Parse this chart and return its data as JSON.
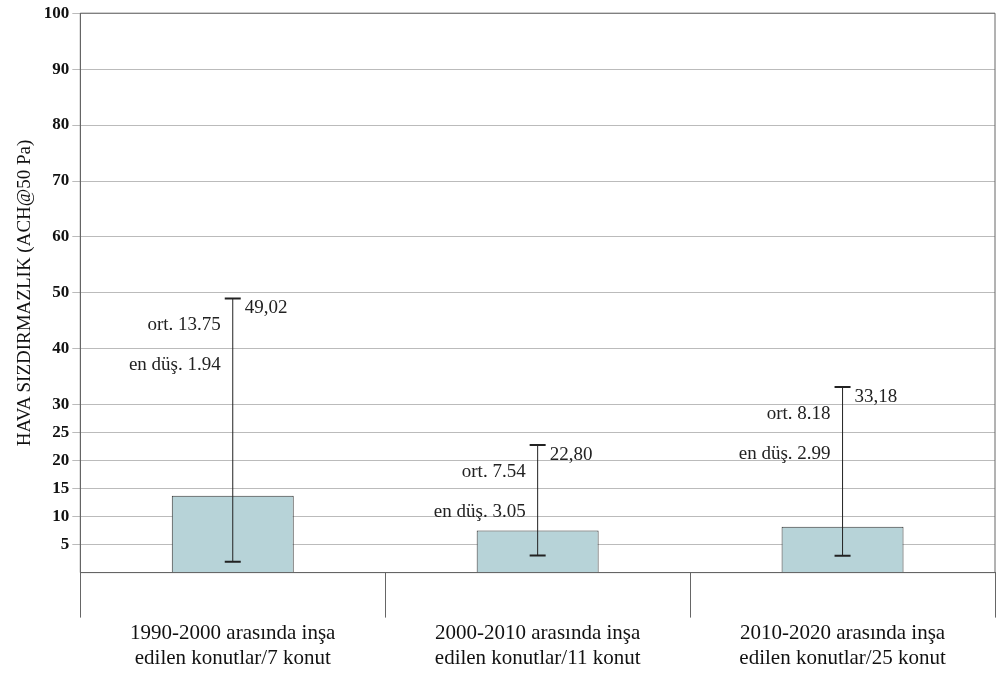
{
  "chart_data": {
    "type": "bar",
    "ylabel": "HAVA SIZDIRMAZLIK (ACH@50 Pa)",
    "categories": [
      "1990-2000 arasında inşa\nedilen konutlar/7 konut",
      "2000-2010 arasında inşa\nedilen konutlar/11 konut",
      "2010-2020 arasında inşa\nedilen konutlar/25 konut"
    ],
    "values": [
      13.75,
      7.54,
      8.18
    ],
    "color": "#b7d3d8",
    "errors": [
      [
        1.94,
        49.02
      ],
      [
        3.05,
        22.8
      ],
      [
        2.99,
        33.18
      ]
    ],
    "ylim": [
      0,
      100
    ],
    "yticks": [
      5,
      10,
      15,
      20,
      25,
      30,
      40,
      50,
      60,
      70,
      80,
      90,
      100
    ],
    "grid": "y",
    "legend": false,
    "annotations": [
      {
        "text": "49,02",
        "x": "1990-2000 arasında inşa\nedilen konutlar/7 konut",
        "y": 49.02
      },
      "ort. 13.75",
      "en düş. 1.94",
      {
        "text": "22,80",
        "x": "2000-2010 arasında inşa\nedilen konutlar/11 konut",
        "y": 22.8
      },
      "ort. 7.54",
      "en düş. 3.05",
      {
        "text": "33,18",
        "x": "2010-2020 arasında inşa\nedilen konutlar/25 konut",
        "y": 33.18
      },
      "ort. 8.18",
      "en düş. 2.99"
    ]
  }
}
